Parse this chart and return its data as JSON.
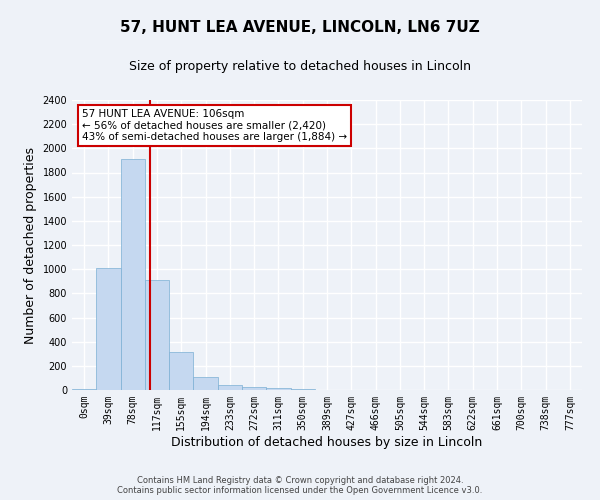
{
  "title": "57, HUNT LEA AVENUE, LINCOLN, LN6 7UZ",
  "subtitle": "Size of property relative to detached houses in Lincoln",
  "xlabel": "Distribution of detached houses by size in Lincoln",
  "ylabel": "Number of detached properties",
  "categories": [
    "0sqm",
    "39sqm",
    "78sqm",
    "117sqm",
    "155sqm",
    "194sqm",
    "233sqm",
    "272sqm",
    "311sqm",
    "350sqm",
    "389sqm",
    "427sqm",
    "466sqm",
    "505sqm",
    "544sqm",
    "583sqm",
    "622sqm",
    "661sqm",
    "700sqm",
    "738sqm",
    "777sqm"
  ],
  "values": [
    10,
    1010,
    1910,
    910,
    315,
    110,
    45,
    25,
    15,
    5,
    0,
    0,
    0,
    0,
    0,
    0,
    0,
    0,
    0,
    0,
    0
  ],
  "bar_color": "#c5d8f0",
  "bar_edge_color": "#7bafd4",
  "vline_x": 2.72,
  "vline_color": "#cc0000",
  "ylim": [
    0,
    2400
  ],
  "yticks": [
    0,
    200,
    400,
    600,
    800,
    1000,
    1200,
    1400,
    1600,
    1800,
    2000,
    2200,
    2400
  ],
  "annotation_text": "57 HUNT LEA AVENUE: 106sqm\n← 56% of detached houses are smaller (2,420)\n43% of semi-detached houses are larger (1,884) →",
  "annotation_box_color": "#ffffff",
  "annotation_box_edge_color": "#cc0000",
  "footer_line1": "Contains HM Land Registry data © Crown copyright and database right 2024.",
  "footer_line2": "Contains public sector information licensed under the Open Government Licence v3.0.",
  "background_color": "#eef2f8",
  "grid_color": "#ffffff",
  "title_fontsize": 11,
  "subtitle_fontsize": 9,
  "tick_fontsize": 7,
  "ylabel_fontsize": 9,
  "xlabel_fontsize": 9
}
